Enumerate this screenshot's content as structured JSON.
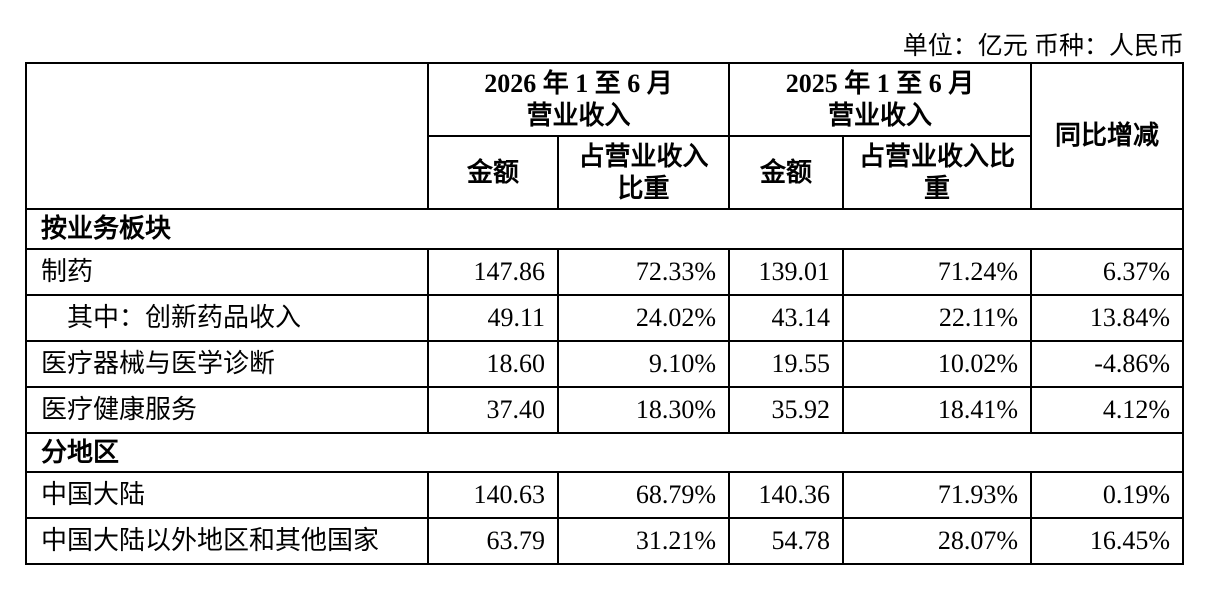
{
  "unit": "单位：亿元 币种：人民币",
  "table": {
    "header": {
      "groups": [
        {
          "period": "2026 年 1 至 6 月",
          "label": "营业收入"
        },
        {
          "period": "2025 年 1 至 6 月",
          "label": "营业收入"
        }
      ],
      "columns": [
        "金额",
        "占营业收入比重",
        "金额",
        "占营业收入比重"
      ],
      "change": "同比增减"
    },
    "sections": [
      {
        "title": "按业务板块",
        "rows": [
          {
            "name": "制药",
            "cells": [
              "147.86",
              "72.33%",
              "139.01",
              "71.24%",
              "6.37%"
            ]
          },
          {
            "name": "其中：创新药品收入",
            "cells": [
              "49.11",
              "24.02%",
              "43.14",
              "22.11%",
              "13.84%"
            ]
          },
          {
            "name": "医疗器械与医学诊断",
            "cells": [
              "18.60",
              "9.10%",
              "19.55",
              "10.02%",
              "-4.86%"
            ]
          },
          {
            "name": "医疗健康服务",
            "cells": [
              "37.40",
              "18.30%",
              "35.92",
              "18.41%",
              "4.12%"
            ]
          }
        ]
      },
      {
        "title": "分地区",
        "rows": [
          {
            "name": "中国大陆",
            "cells": [
              "140.63",
              "68.79%",
              "140.36",
              "71.93%",
              "0.19%"
            ]
          },
          {
            "name": "中国大陆以外地区和其他国家",
            "cells": [
              "63.79",
              "31.21%",
              "54.78",
              "28.07%",
              "16.45%"
            ]
          }
        ]
      }
    ]
  }
}
